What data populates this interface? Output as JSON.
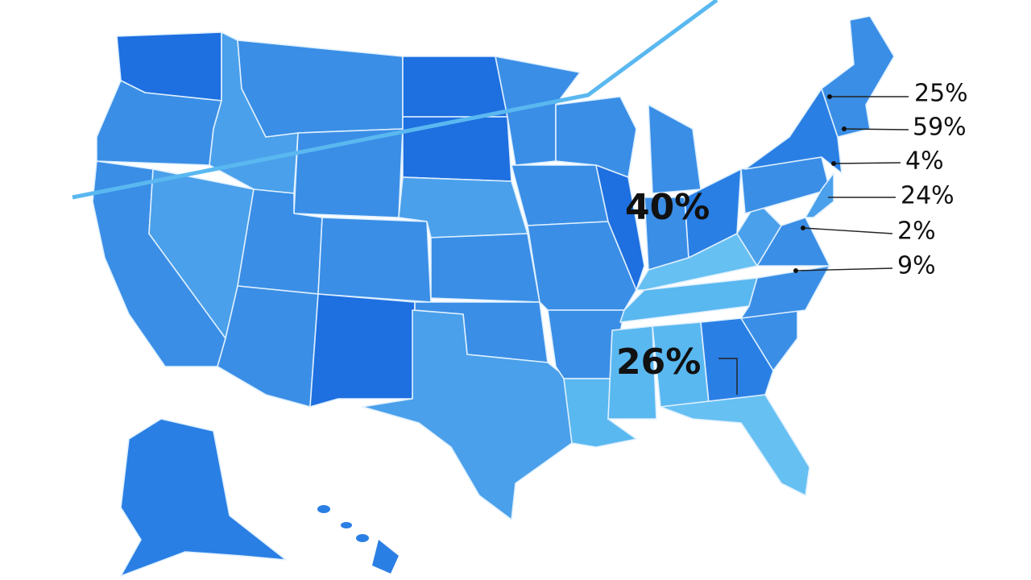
{
  "callouts": [
    "25%",
    "59%",
    "4%",
    "24%",
    "2%",
    "9%"
  ],
  "region_labels": [
    "40%",
    "26%"
  ]
}
